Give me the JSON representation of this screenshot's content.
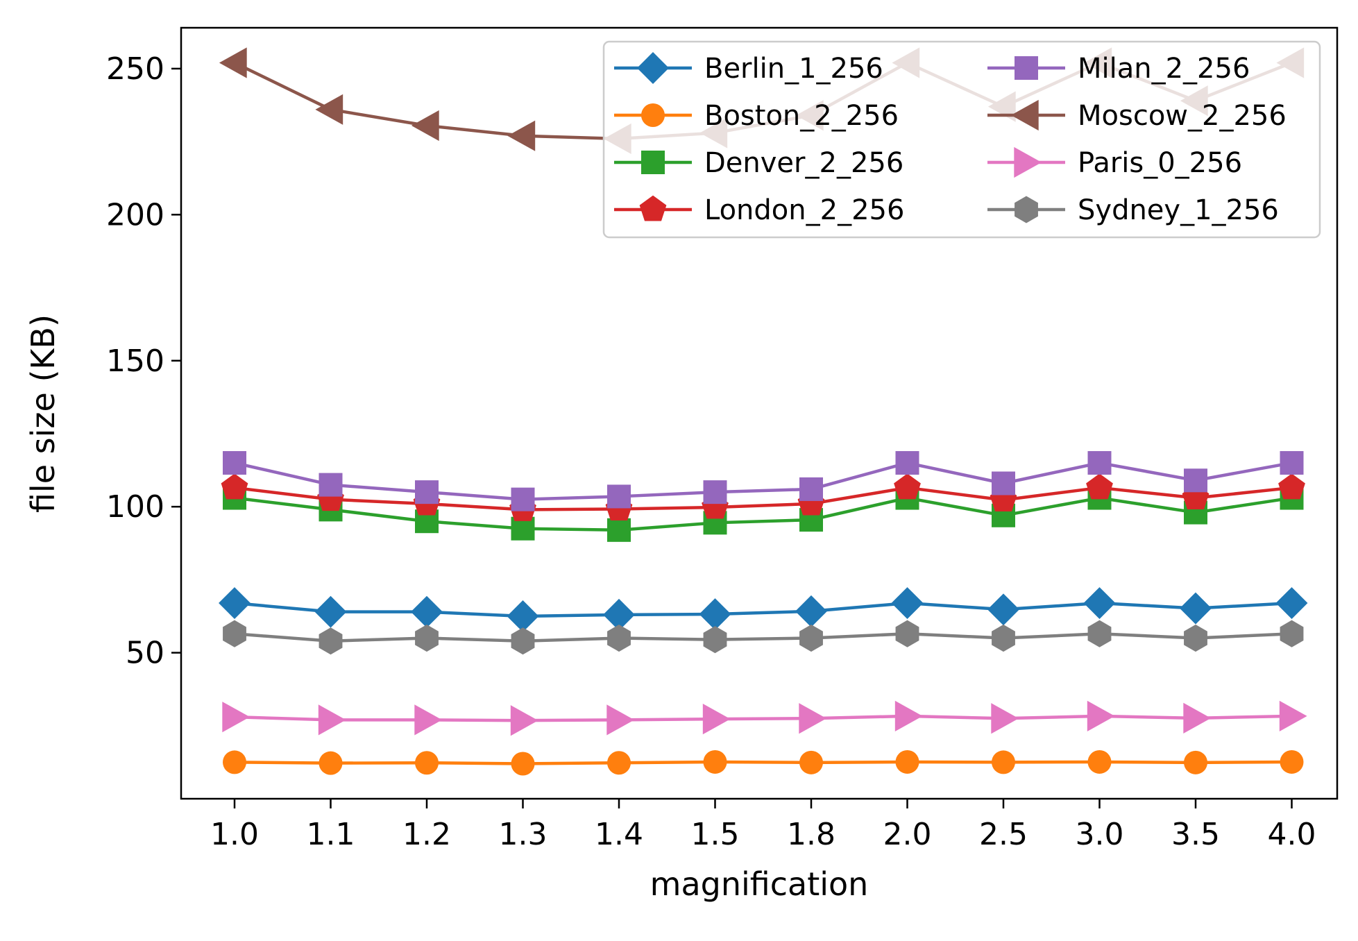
{
  "chart_data": {
    "type": "line",
    "title": "",
    "xlabel": "magnification",
    "ylabel": "file size (KB)",
    "categories": [
      "1.0",
      "1.1",
      "1.2",
      "1.3",
      "1.4",
      "1.5",
      "1.8",
      "2.0",
      "2.5",
      "3.0",
      "3.5",
      "4.0"
    ],
    "yticks": [
      "50",
      "100",
      "150",
      "200",
      "250"
    ],
    "ylim": [
      0,
      264
    ],
    "grid": false,
    "legend_position": "top-right",
    "legend_columns": 2,
    "series": [
      {
        "name": "Berlin_1_256",
        "color": "#1f77b4",
        "marker": "diamond",
        "values": [
          67,
          64,
          64,
          62.5,
          63,
          63.2,
          64.2,
          67,
          64.8,
          67,
          65.2,
          67
        ]
      },
      {
        "name": "Boston_2_256",
        "color": "#ff7f0e",
        "marker": "circle",
        "values": [
          12.5,
          12.2,
          12.3,
          12.0,
          12.3,
          12.6,
          12.4,
          12.6,
          12.5,
          12.6,
          12.4,
          12.6
        ]
      },
      {
        "name": "Denver_2_256",
        "color": "#2ca02c",
        "marker": "square",
        "values": [
          103,
          99,
          95,
          92.5,
          92,
          94.5,
          95.5,
          103,
          97,
          103,
          98,
          103
        ]
      },
      {
        "name": "London_2_256",
        "color": "#d62728",
        "marker": "pentagon",
        "values": [
          106.5,
          102.5,
          101,
          99,
          99.2,
          99.8,
          101,
          106.5,
          102.3,
          106.5,
          103,
          106.5
        ]
      },
      {
        "name": "Milan_2_256",
        "color": "#9467bd",
        "marker": "square",
        "values": [
          115,
          107.5,
          105,
          102.5,
          103.5,
          105,
          106,
          115,
          108,
          115,
          109,
          115
        ]
      },
      {
        "name": "Moscow_2_256",
        "color": "#8c564b",
        "marker": "triangle-left",
        "values": [
          252,
          236,
          230.5,
          227,
          226,
          228,
          234,
          252,
          237,
          252,
          239,
          252
        ]
      },
      {
        "name": "Paris_0_256",
        "color": "#e377c2",
        "marker": "triangle-right",
        "values": [
          28,
          27,
          27,
          26.8,
          27,
          27.3,
          27.5,
          28.3,
          27.5,
          28.3,
          27.6,
          28.3
        ]
      },
      {
        "name": "Sydney_1_256",
        "color": "#7f7f7f",
        "marker": "hexagon",
        "values": [
          56.5,
          54,
          55,
          54,
          55,
          54.5,
          55,
          56.5,
          55,
          56.5,
          55,
          56.5
        ]
      }
    ]
  }
}
